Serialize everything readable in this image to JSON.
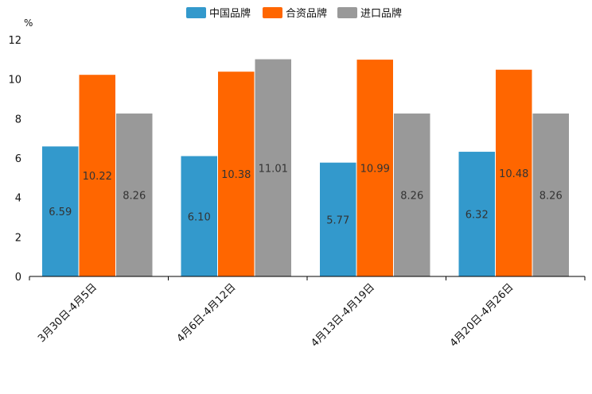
{
  "chart_data": {
    "type": "bar",
    "unit": "%",
    "categories": [
      "3月30日-4月5日",
      "4月6日-4月12日",
      "4月13日-4月19日",
      "4月20日-4月26日"
    ],
    "series": [
      {
        "name": "中国品牌",
        "color": "#3399cc",
        "values": [
          6.59,
          6.1,
          5.77,
          6.32
        ],
        "labels": [
          "6.59",
          "6.10",
          "5.77",
          "6.32"
        ]
      },
      {
        "name": "合资品牌",
        "color": "#ff6600",
        "values": [
          10.22,
          10.38,
          10.99,
          10.48
        ],
        "labels": [
          "10.22",
          "10.38",
          "10.99",
          "10.48"
        ]
      },
      {
        "name": "进口品牌",
        "color": "#999999",
        "values": [
          8.26,
          11.01,
          8.26,
          8.26
        ],
        "labels": [
          "8.26",
          "11.01",
          "8.26",
          "8.26"
        ]
      }
    ],
    "ylim": [
      0,
      12
    ],
    "yticks": [
      0,
      2,
      4,
      6,
      8,
      10,
      12
    ],
    "legend_position": "top-center",
    "grid": false
  }
}
